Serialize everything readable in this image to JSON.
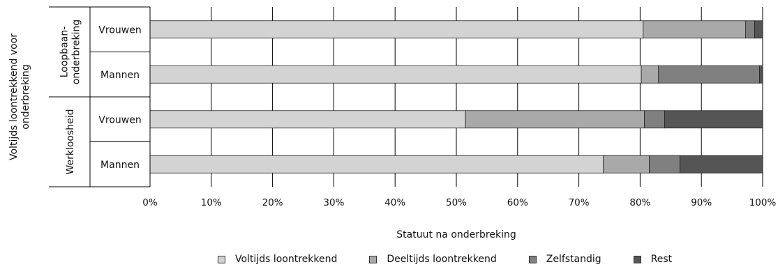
{
  "chart_data": {
    "type": "bar",
    "orientation": "horizontal",
    "stacked": true,
    "percent": true,
    "ylabel": "Voltijds loontrekkend voor onderbreking",
    "xlabel": "Statuut na onderbreking",
    "xlim": [
      0,
      100
    ],
    "x_ticks": [
      "0%",
      "10%",
      "20%",
      "30%",
      "40%",
      "50%",
      "60%",
      "70%",
      "80%",
      "90%",
      "100%"
    ],
    "grid": true,
    "legend_position": "bottom",
    "groups": [
      {
        "label": "Loopbaan-onderbreking",
        "label_lines": [
          "Loopbaan-",
          "onderbreking"
        ],
        "categories": [
          "Vrouwen",
          "Mannen"
        ]
      },
      {
        "label": "Werkloosheid",
        "label_lines": [
          "Werkloosheid"
        ],
        "categories": [
          "Vrouwen",
          "Mannen"
        ]
      }
    ],
    "series": [
      {
        "name": "Voltijds loontrekkend",
        "color": "#d3d3d3",
        "values": [
          80.5,
          80.2,
          51.5,
          74.0
        ]
      },
      {
        "name": "Deeltijds loontrekkend",
        "color": "#a9a9a9",
        "values": [
          16.7,
          2.8,
          29.2,
          7.5
        ]
      },
      {
        "name": "Zelfstandig",
        "color": "#808080",
        "values": [
          1.5,
          16.5,
          3.3,
          5.0
        ]
      },
      {
        "name": "Rest",
        "color": "#555555",
        "values": [
          1.3,
          0.5,
          16.0,
          13.5
        ]
      }
    ]
  }
}
